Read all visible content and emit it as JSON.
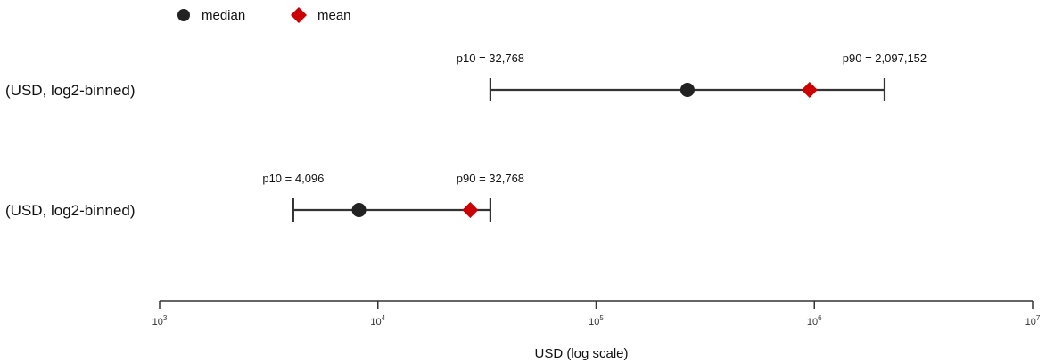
{
  "chart_data": {
    "type": "dot-interval",
    "xscale": "log10",
    "xlim": [
      1000,
      10000000
    ],
    "xlabel": "USD (log scale)",
    "xticks": [
      {
        "value": 1000,
        "base": "10",
        "exp": "3"
      },
      {
        "value": 10000,
        "base": "10",
        "exp": "4"
      },
      {
        "value": 100000,
        "base": "10",
        "exp": "5"
      },
      {
        "value": 1000000,
        "base": "10",
        "exp": "6"
      },
      {
        "value": 10000000,
        "base": "10",
        "exp": "7"
      }
    ],
    "legend": {
      "position": "top-left",
      "entries": [
        {
          "label": "median",
          "marker": "circle",
          "color": "#222222"
        },
        {
          "label": "mean",
          "marker": "diamond",
          "color": "#cc0000"
        }
      ]
    },
    "rows": [
      {
        "label": "(USD, log2-binned)",
        "p10": 32768,
        "p10_label": "p10 = 32,768",
        "p90": 2097152,
        "p90_label": "p90 = 2,097,152",
        "median": 262144,
        "mean": 950000
      },
      {
        "label": "(USD, log2-binned)",
        "p10": 4096,
        "p10_label": "p10 = 4,096",
        "p90": 32768,
        "p90_label": "p90 = 32,768",
        "median": 8192,
        "mean": 26500
      }
    ],
    "colors": {
      "interval": "#333333",
      "median": "#222222",
      "mean": "#cc0000",
      "axis": "#333333"
    }
  }
}
